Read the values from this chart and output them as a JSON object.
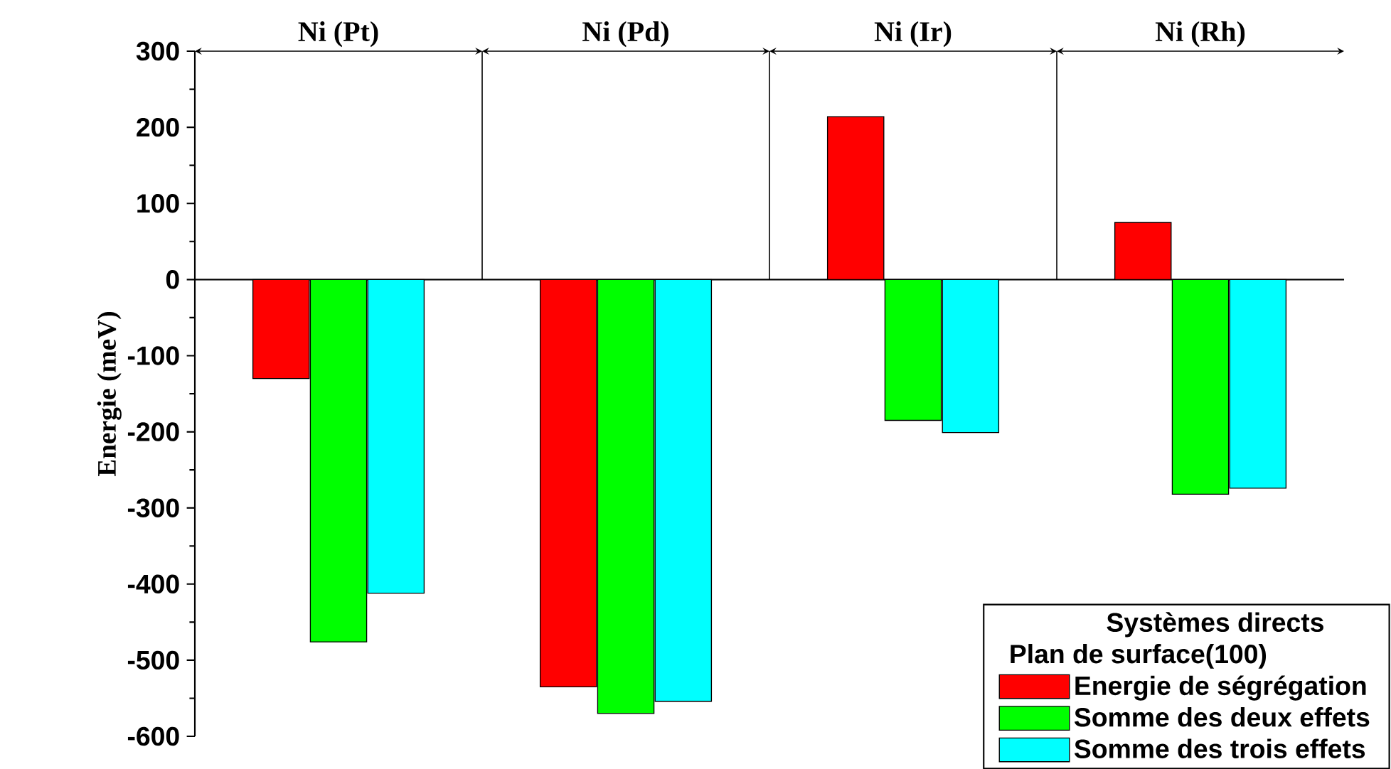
{
  "chart_data": {
    "type": "bar",
    "ylabel": "Energie (meV)",
    "legend_title": "Systèmes directs",
    "annotations": [
      "Plan de surface(100)"
    ],
    "categories": [
      "Ni (Pt)",
      "Ni (Pd)",
      "Ni (Ir)",
      "Ni (Rh)"
    ],
    "series": [
      {
        "name": "Energie de ségrégation",
        "color": "#ff0000",
        "values": [
          -130,
          -535,
          214,
          75
        ]
      },
      {
        "name": "Somme des deux effets",
        "color": "#00ff00",
        "values": [
          -476,
          -570,
          -185,
          -282
        ]
      },
      {
        "name": "Somme des trois effets",
        "color": "#00ffff",
        "values": [
          -412,
          -554,
          -201,
          -274
        ]
      }
    ],
    "ylim": [
      -600,
      300
    ],
    "yticks": [
      -600,
      -500,
      -400,
      -300,
      -200,
      -100,
      0,
      100,
      200,
      300
    ],
    "legend": "bottom right"
  }
}
